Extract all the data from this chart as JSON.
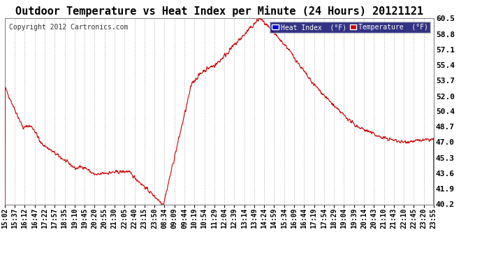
{
  "title": "Outdoor Temperature vs Heat Index per Minute (24 Hours) 20121121",
  "copyright": "Copyright 2012 Cartronics.com",
  "ylim": [
    40.2,
    60.5
  ],
  "yticks": [
    40.2,
    41.9,
    43.6,
    45.3,
    47.0,
    48.7,
    50.4,
    52.0,
    53.7,
    55.4,
    57.1,
    58.8,
    60.5
  ],
  "ytick_labels": [
    "40.2",
    "41.9",
    "43.6",
    "45.3",
    "47.0",
    "48.7",
    "50.4",
    "52.0",
    "53.7",
    "55.4",
    "57.1",
    "58.8",
    "60.5"
  ],
  "line_color": "#cc0000",
  "legend_heat_bg": "#0000cc",
  "legend_temp_bg": "#cc0000",
  "background_color": "#ffffff",
  "grid_color": "#aaaaaa",
  "title_fontsize": 11,
  "tick_fontsize": 7,
  "xtick_labels": [
    "15:02",
    "15:37",
    "16:12",
    "16:47",
    "17:22",
    "17:57",
    "18:35",
    "19:10",
    "19:45",
    "20:20",
    "20:55",
    "21:30",
    "22:05",
    "22:40",
    "23:15",
    "23:50",
    "08:34",
    "09:09",
    "09:44",
    "10:19",
    "10:54",
    "11:29",
    "12:04",
    "12:39",
    "13:14",
    "13:49",
    "14:24",
    "14:59",
    "15:34",
    "16:09",
    "16:44",
    "17:19",
    "17:54",
    "18:29",
    "19:04",
    "19:39",
    "20:14",
    "20:43",
    "21:10",
    "21:43",
    "22:10",
    "22:45",
    "23:20",
    "23:55"
  ]
}
